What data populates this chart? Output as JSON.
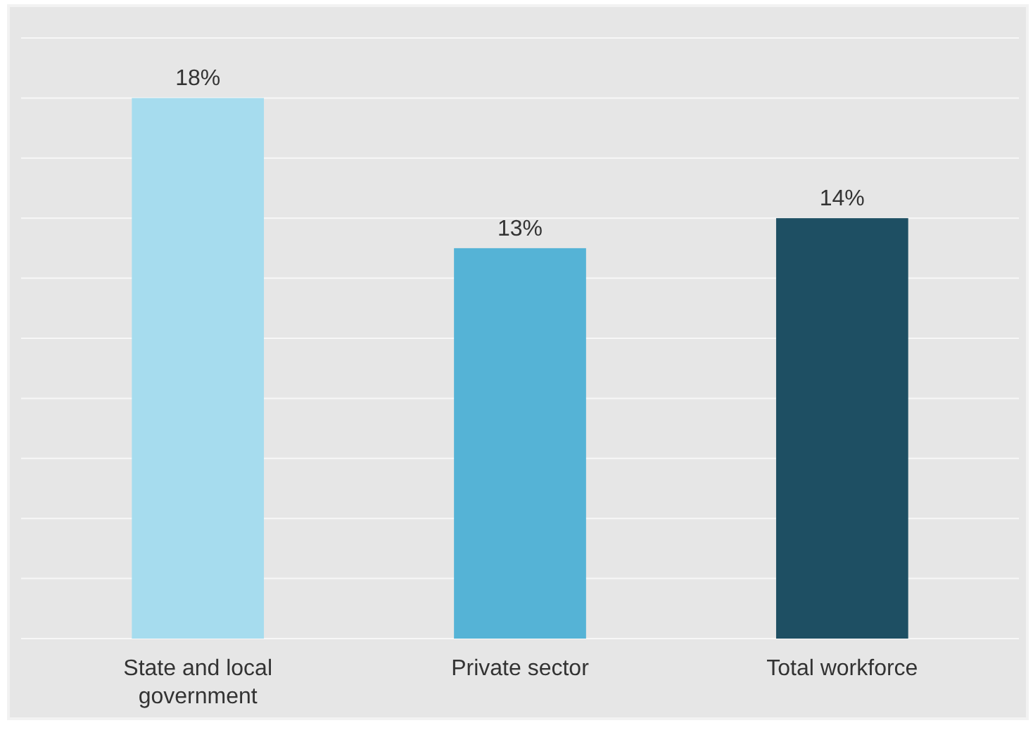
{
  "chart_data": {
    "type": "bar",
    "categories": [
      "State and local government",
      "Private sector",
      "Total workforce"
    ],
    "values": [
      18,
      13,
      14
    ],
    "colors": [
      "#a6dcee",
      "#55b3d6",
      "#1e4f63"
    ],
    "value_labels": [
      "18%",
      "13%",
      "14%"
    ],
    "ylim": [
      0,
      20
    ],
    "yticks": [
      {
        "value": 0,
        "label": null
      },
      {
        "value": 2,
        "label": null
      },
      {
        "value": 4,
        "label": null
      },
      {
        "value": 6,
        "label": null
      },
      {
        "value": 8,
        "label": null
      },
      {
        "value": 10,
        "label": null
      },
      {
        "value": 12,
        "label": null
      },
      {
        "value": 14,
        "label": null
      },
      {
        "value": 16,
        "label": null
      },
      {
        "value": 18,
        "label": null
      },
      {
        "value": 20,
        "label": null
      }
    ],
    "grid": "y",
    "tick_labels": "x"
  }
}
